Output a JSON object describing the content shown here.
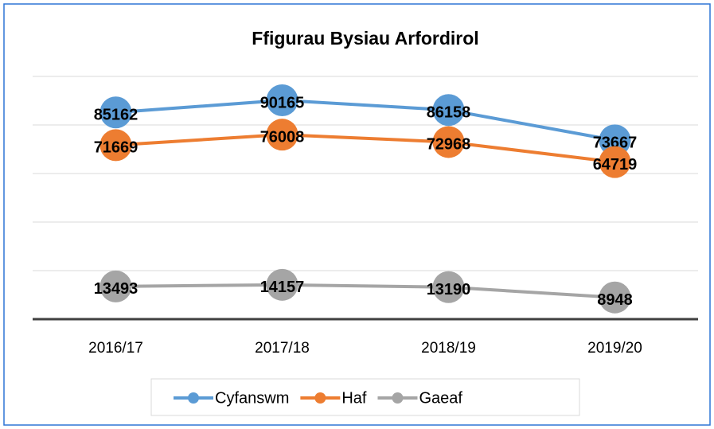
{
  "chart_data": {
    "type": "line",
    "title": "Ffigurau Bysiau Arfordirol",
    "categories": [
      "2016/17",
      "2017/18",
      "2018/19",
      "2019/20"
    ],
    "series": [
      {
        "name": "Cyfanswm",
        "color": "#5b9bd5",
        "values": [
          85162,
          90165,
          86158,
          73667
        ]
      },
      {
        "name": "Haf",
        "color": "#ed7d31",
        "values": [
          71669,
          76008,
          72968,
          64719
        ]
      },
      {
        "name": "Gaeaf",
        "color": "#a5a5a5",
        "values": [
          13493,
          14157,
          13190,
          8948
        ]
      }
    ],
    "ylim": [
      0,
      100000
    ],
    "yticks": [
      0,
      20000,
      40000,
      60000,
      80000,
      100000
    ],
    "grid": true,
    "legend": "bottom"
  }
}
